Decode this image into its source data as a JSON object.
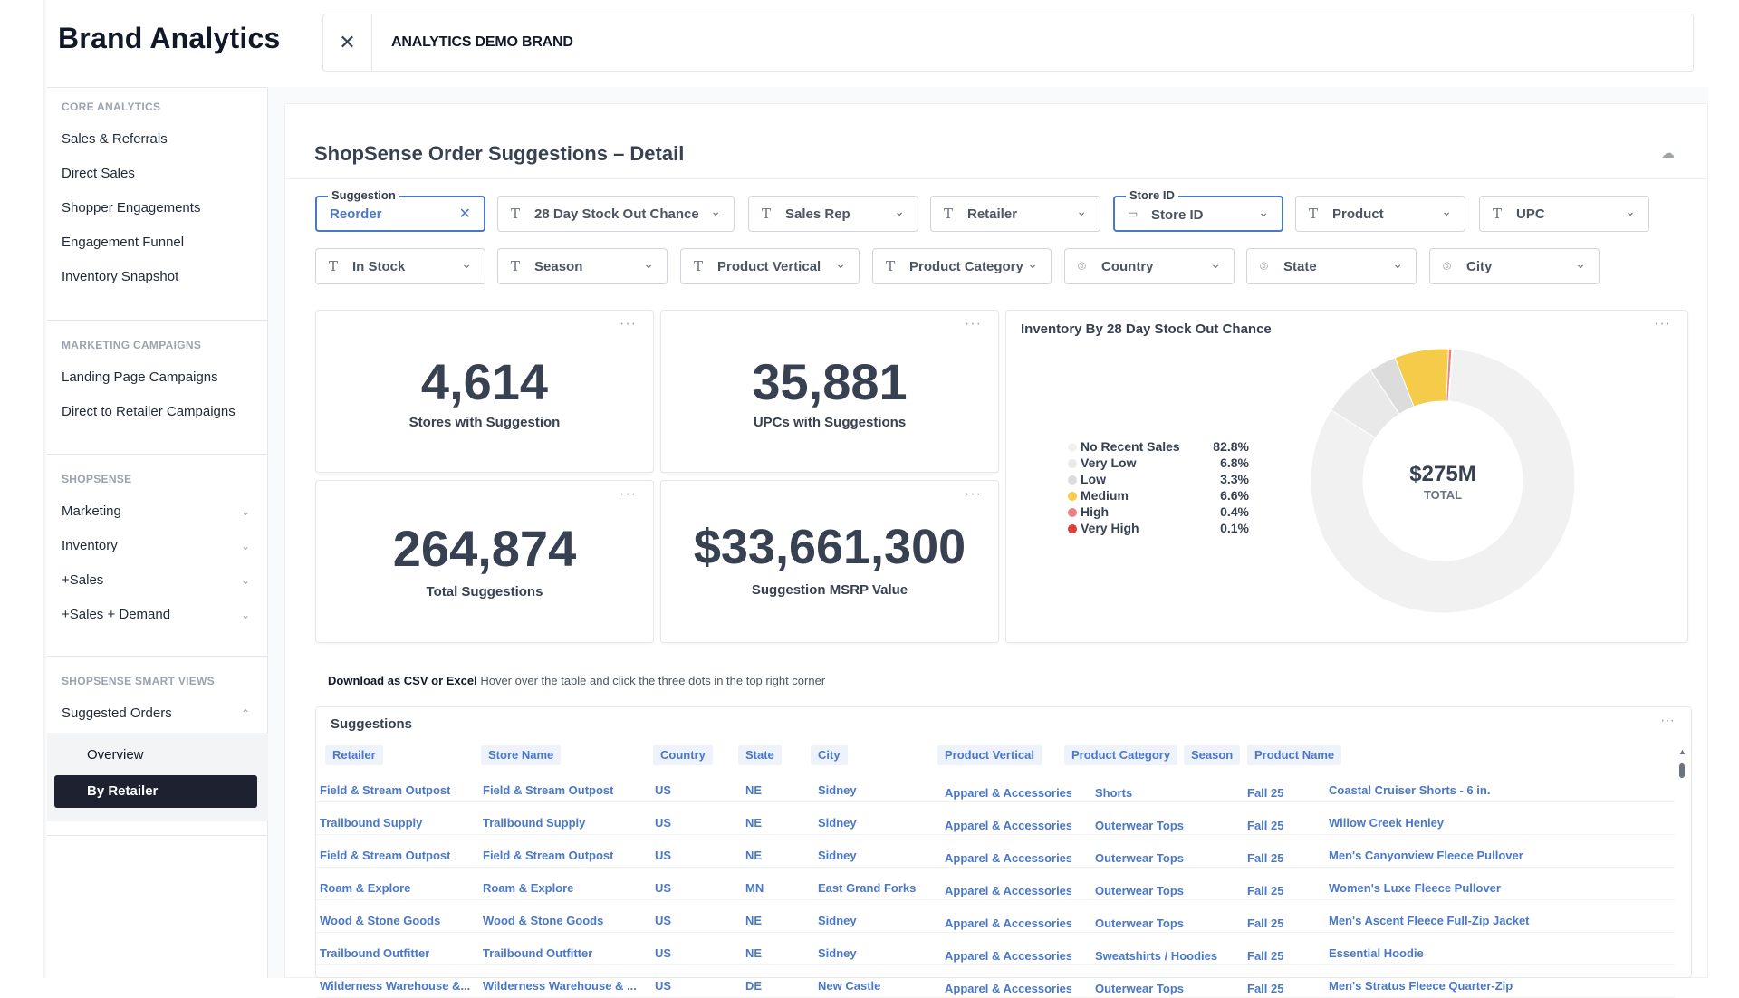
{
  "app": {
    "title": "Brand Analytics",
    "brand_name": "ANALYTICS DEMO BRAND",
    "close_label": "✕"
  },
  "sidebar": {
    "core_head": "CORE ANALYTICS",
    "core_items": [
      "Sales & Referrals",
      "Direct Sales",
      "Shopper Engagements",
      "Engagement Funnel",
      "Inventory Snapshot"
    ],
    "marketing_head": "MARKETING CAMPAIGNS",
    "marketing_items": [
      "Landing Page Campaigns",
      "Direct to Retailer Campaigns"
    ],
    "shopsense_head": "SHOPSENSE",
    "shopsense_items": [
      "Marketing",
      "Inventory",
      "+Sales",
      "+Sales + Demand"
    ],
    "smart_head": "SHOPSENSE SMART VIEWS",
    "smart_item": "Suggested Orders",
    "sub_items": [
      "Overview",
      "By Retailer"
    ]
  },
  "page": {
    "title": "ShopSense Order Suggestions – Detail"
  },
  "filters": {
    "suggestion_legend": "Suggestion",
    "suggestion_value": "Reorder",
    "store_id_legend": "Store ID",
    "row1": [
      "28 Day Stock Out Chance",
      "Sales Rep",
      "Retailer",
      "Store ID",
      "Product",
      "UPC"
    ],
    "row2": [
      "In Stock",
      "Season",
      "Product Vertical",
      "Product Category",
      "Country",
      "State",
      "City"
    ]
  },
  "kpis": [
    {
      "value": "4,614",
      "label": "Stores with Suggestion"
    },
    {
      "value": "35,881",
      "label": "UPCs with Suggestions"
    },
    {
      "value": "264,874",
      "label": "Total Suggestions"
    },
    {
      "value": "$33,661,300",
      "label": "Suggestion MSRP Value"
    }
  ],
  "more_label": "···",
  "chart_data": {
    "type": "pie",
    "title": "Inventory By 28 Day Stock Out Chance",
    "center_value": "$275M",
    "center_label": "TOTAL",
    "categories": [
      "No Recent Sales",
      "Very Low",
      "Low",
      "Medium",
      "High",
      "Very High"
    ],
    "values": [
      82.8,
      6.8,
      3.3,
      6.6,
      0.4,
      0.1
    ],
    "value_labels": [
      "82.8%",
      "6.8%",
      "3.3%",
      "6.6%",
      "0.4%",
      "0.1%"
    ],
    "colors": [
      "#f1f1f1",
      "#e9e9e9",
      "#dcdcdc",
      "#f5cb4a",
      "#f08080",
      "#e03c3c"
    ],
    "legend": "left"
  },
  "table": {
    "note_bold": "Download as CSV or Excel",
    "note_text": " Hover over the table and click the three dots in the top right corner",
    "title": "Suggestions",
    "columns": [
      "Retailer",
      "Store Name",
      "Country",
      "State",
      "City",
      "Product Vertical",
      "Product Category",
      "Season",
      "Product Name"
    ],
    "rows": [
      [
        "Field & Stream Outpost",
        "Field & Stream Outpost",
        "US",
        "NE",
        "Sidney",
        "Apparel & Accessories",
        "Shorts",
        "Fall 25",
        "Coastal Cruiser Shorts - 6 in."
      ],
      [
        "Trailbound Supply",
        "Trailbound Supply",
        "US",
        "NE",
        "Sidney",
        "Apparel & Accessories",
        "Outerwear Tops",
        "Fall 25",
        "Willow Creek Henley"
      ],
      [
        "Field & Stream Outpost",
        "Field & Stream Outpost",
        "US",
        "NE",
        "Sidney",
        "Apparel & Accessories",
        "Outerwear Tops",
        "Fall 25",
        "Men's Canyonview Fleece Pullover"
      ],
      [
        "Roam & Explore",
        "Roam & Explore",
        "US",
        "MN",
        "East Grand Forks",
        "Apparel & Accessories",
        "Outerwear Tops",
        "Fall 25",
        "Women's Luxe Fleece Pullover"
      ],
      [
        "Wood & Stone Goods",
        "Wood & Stone Goods",
        "US",
        "NE",
        "Sidney",
        "Apparel & Accessories",
        "Outerwear Tops",
        "Fall 25",
        "Men's Ascent Fleece Full-Zip Jacket"
      ],
      [
        "Trailbound Outfitter",
        "Trailbound Outfitter",
        "US",
        "NE",
        "Sidney",
        "Apparel & Accessories",
        "Sweatshirts / Hoodies",
        "Fall 25",
        "Essential Hoodie"
      ],
      [
        "Wilderness Warehouse &...",
        "Wilderness Warehouse & ...",
        "US",
        "DE",
        "New Castle",
        "Apparel & Accessories",
        "Outerwear Tops",
        "Fall 25",
        "Men's Stratus Fleece Quarter-Zip"
      ]
    ]
  }
}
